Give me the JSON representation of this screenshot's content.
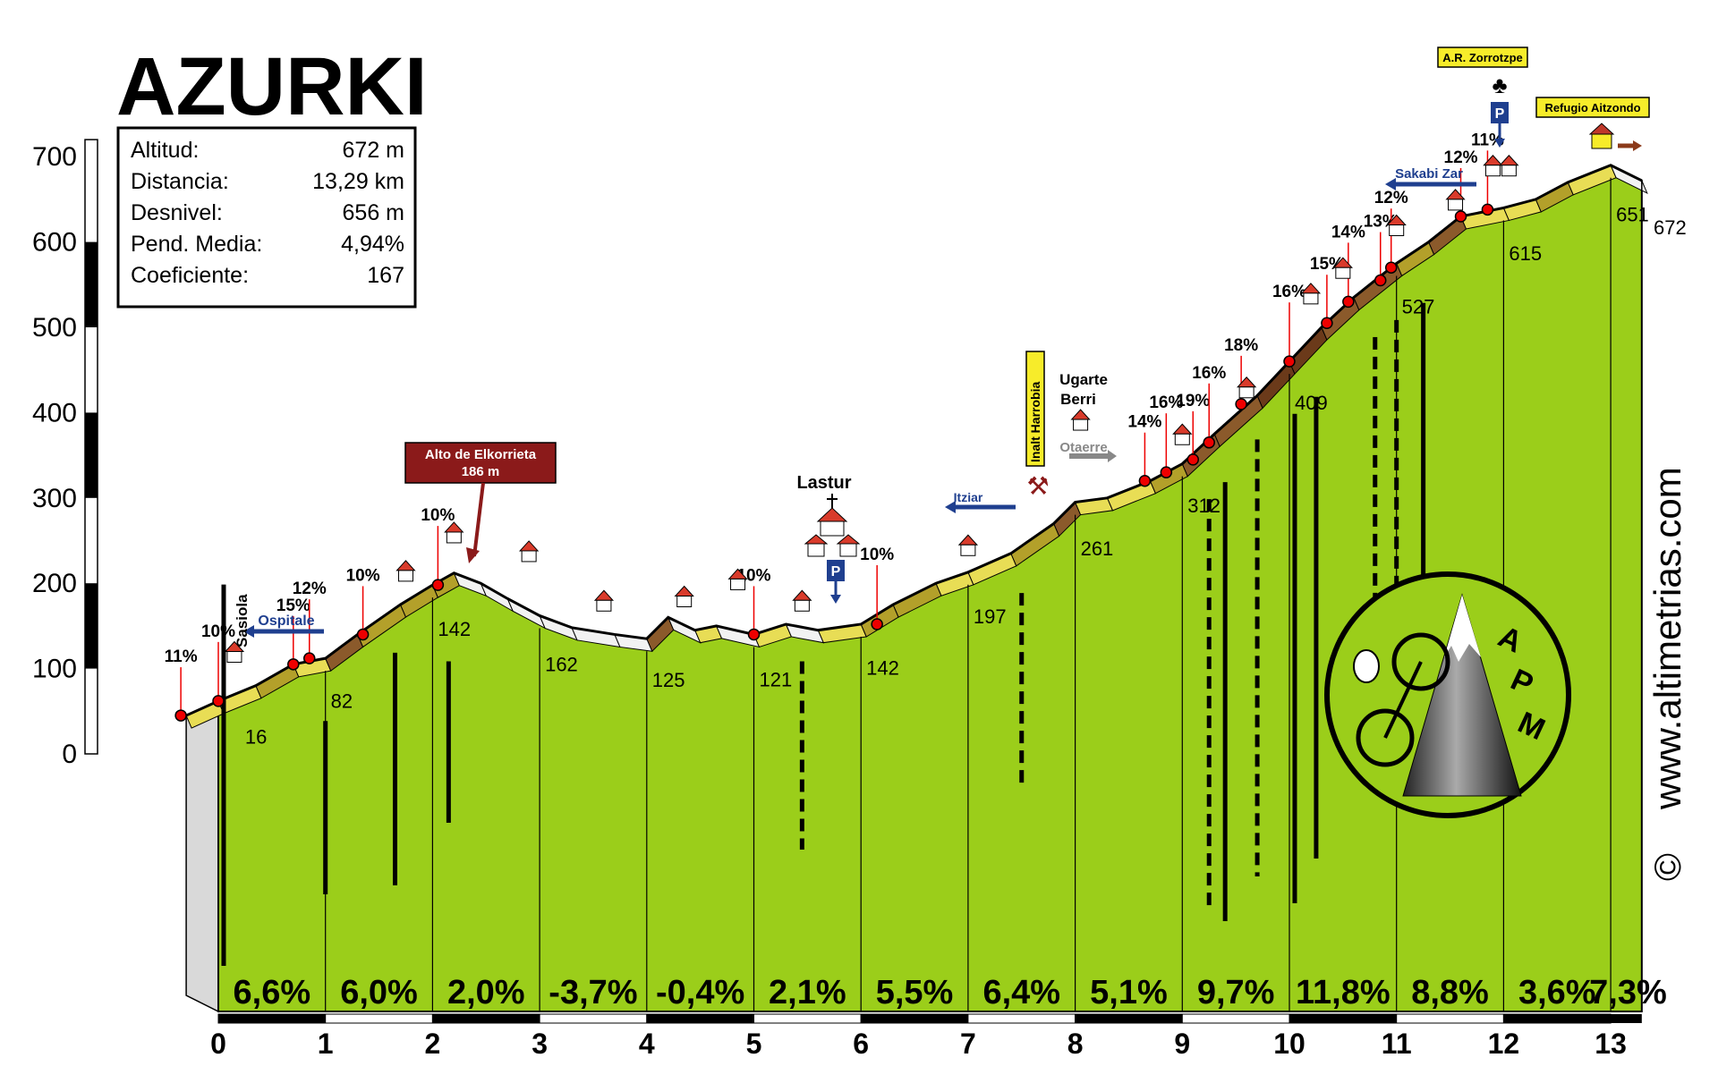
{
  "chart_data": {
    "type": "area",
    "title": "AZURKI",
    "info_panel": [
      {
        "label": "Altitud:",
        "value": "672 m"
      },
      {
        "label": "Distancia:",
        "value": "13,29 km"
      },
      {
        "label": "Desnivel:",
        "value": "656 m"
      },
      {
        "label": "Pend. Media:",
        "value": "4,94%"
      },
      {
        "label": "Coeficiente:",
        "value": "167"
      }
    ],
    "y_axis": {
      "ticks": [
        0,
        100,
        200,
        300,
        400,
        500,
        600,
        700
      ],
      "ylim": [
        0,
        700
      ]
    },
    "x_axis": {
      "ticks": [
        0,
        1,
        2,
        3,
        4,
        5,
        6,
        7,
        8,
        9,
        10,
        11,
        12,
        13
      ],
      "xlim": [
        0,
        13.29
      ]
    },
    "profile": [
      [
        -0.3,
        45
      ],
      [
        0.0,
        62
      ],
      [
        0.35,
        80
      ],
      [
        0.7,
        105
      ],
      [
        1.0,
        112
      ],
      [
        1.3,
        140
      ],
      [
        1.7,
        175
      ],
      [
        2.0,
        198
      ],
      [
        2.2,
        212
      ],
      [
        2.45,
        200
      ],
      [
        2.7,
        182
      ],
      [
        3.0,
        162
      ],
      [
        3.3,
        148
      ],
      [
        3.7,
        140
      ],
      [
        4.0,
        135
      ],
      [
        4.2,
        160
      ],
      [
        4.45,
        145
      ],
      [
        4.65,
        150
      ],
      [
        5.0,
        140
      ],
      [
        5.3,
        152
      ],
      [
        5.6,
        145
      ],
      [
        6.0,
        152
      ],
      [
        6.3,
        175
      ],
      [
        6.7,
        200
      ],
      [
        7.0,
        213
      ],
      [
        7.4,
        235
      ],
      [
        7.8,
        270
      ],
      [
        8.0,
        295
      ],
      [
        8.3,
        300
      ],
      [
        8.7,
        320
      ],
      [
        9.0,
        340
      ],
      [
        9.3,
        375
      ],
      [
        9.7,
        420
      ],
      [
        10.0,
        460
      ],
      [
        10.3,
        500
      ],
      [
        10.6,
        535
      ],
      [
        11.0,
        575
      ],
      [
        11.3,
        600
      ],
      [
        11.6,
        630
      ],
      [
        12.0,
        640
      ],
      [
        12.3,
        650
      ],
      [
        12.6,
        670
      ],
      [
        13.0,
        690
      ],
      [
        13.29,
        672
      ]
    ],
    "km_section_gradients": [
      "6,6%",
      "6,0%",
      "2,0%",
      "-3,7%",
      "-0,4%",
      "2,1%",
      "5,5%",
      "6,4%",
      "5,1%",
      "9,7%",
      "11,8%",
      "8,8%",
      "3,6%",
      "7,3%"
    ],
    "km_altitudes": [
      {
        "km": 0.25,
        "alt": "16"
      },
      {
        "km": 1.05,
        "alt": "82"
      },
      {
        "km": 2.05,
        "alt": "142"
      },
      {
        "km": 3.05,
        "alt": "162"
      },
      {
        "km": 4.05,
        "alt": "125"
      },
      {
        "km": 5.05,
        "alt": "121"
      },
      {
        "km": 6.05,
        "alt": "142"
      },
      {
        "km": 7.05,
        "alt": "197"
      },
      {
        "km": 8.05,
        "alt": "261"
      },
      {
        "km": 9.05,
        "alt": "312"
      },
      {
        "km": 10.05,
        "alt": "409"
      },
      {
        "km": 11.05,
        "alt": "527"
      },
      {
        "km": 12.05,
        "alt": "615"
      },
      {
        "km": 13.05,
        "alt": "651"
      },
      {
        "km": 13.4,
        "alt": "672"
      }
    ],
    "steep_labels": [
      {
        "km": -0.35,
        "alt": 45,
        "text": "11%"
      },
      {
        "km": 0.0,
        "alt": 62,
        "text": "10%"
      },
      {
        "km": 0.7,
        "alt": 105,
        "text": "15%"
      },
      {
        "km": 0.85,
        "alt": 112,
        "text": "12%"
      },
      {
        "km": 1.35,
        "alt": 140,
        "text": "10%"
      },
      {
        "km": 2.05,
        "alt": 198,
        "text": "10%"
      },
      {
        "km": 5.0,
        "alt": 140,
        "text": "10%"
      },
      {
        "km": 6.15,
        "alt": 152,
        "text": "10%"
      },
      {
        "km": 8.65,
        "alt": 320,
        "text": "14%"
      },
      {
        "km": 8.85,
        "alt": 330,
        "text": "16%"
      },
      {
        "km": 9.1,
        "alt": 345,
        "text": "19%"
      },
      {
        "km": 9.25,
        "alt": 365,
        "text": "16%"
      },
      {
        "km": 9.55,
        "alt": 410,
        "text": "18%"
      },
      {
        "km": 10.0,
        "alt": 460,
        "text": "16%"
      },
      {
        "km": 10.35,
        "alt": 505,
        "text": "15%"
      },
      {
        "km": 10.55,
        "alt": 530,
        "text": "14%"
      },
      {
        "km": 10.85,
        "alt": 555,
        "text": "13%"
      },
      {
        "km": 10.95,
        "alt": 570,
        "text": "12%"
      },
      {
        "km": 11.6,
        "alt": 630,
        "text": "12%"
      },
      {
        "km": 11.85,
        "alt": 638,
        "text": "11%"
      }
    ],
    "places": {
      "ospitale": "Ospitale",
      "sasiola": "Sasiola",
      "lastur": "Lastur",
      "ugarte_1": "Ugarte",
      "ugarte_2": "Berri",
      "otaerre": "Otaerre",
      "itziar": "Itziar",
      "inalt_harrobia": "Inalt Harrobia",
      "sakabi_zar": "Sakabi Zar",
      "alto_elkorrieta_1": "Alto de Elkorrieta",
      "alto_elkorrieta_2": "186 m",
      "zorrotzpe": "A.R. Zorrotzpe",
      "aitzondo": "Refugio Aitzondo"
    },
    "logo_letters": [
      "A",
      "P",
      "M"
    ],
    "website": "www.altimetrias.com",
    "copyright": "©"
  }
}
